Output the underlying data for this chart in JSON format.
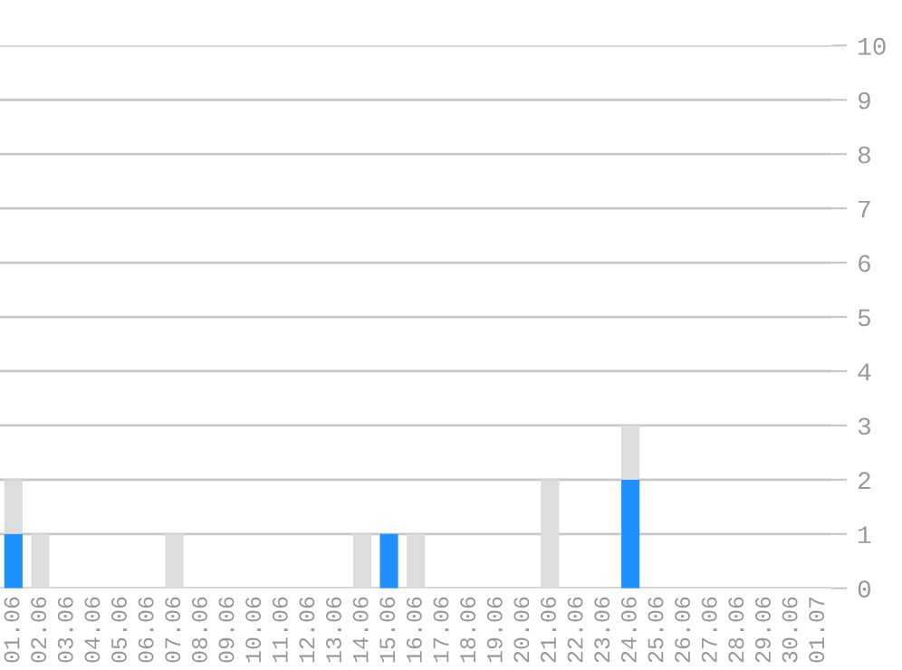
{
  "chart_data": {
    "type": "bar",
    "stacked": true,
    "categories": [
      "01.06",
      "02.06",
      "03.06",
      "04.06",
      "05.06",
      "06.06",
      "07.06",
      "08.06",
      "09.06",
      "10.06",
      "11.06",
      "12.06",
      "13.06",
      "14.06",
      "15.06",
      "16.06",
      "17.06",
      "18.06",
      "19.06",
      "20.06",
      "21.06",
      "22.06",
      "23.06",
      "24.06",
      "25.06",
      "26.06",
      "27.06",
      "28.06",
      "29.06",
      "30.06",
      "01.07"
    ],
    "series": [
      {
        "color": "#1e90ff",
        "values": [
          1,
          0,
          0,
          0,
          0,
          0,
          0,
          0,
          0,
          0,
          0,
          0,
          0,
          0,
          1,
          0,
          0,
          0,
          0,
          0,
          0,
          0,
          0,
          2,
          0,
          0,
          0,
          0,
          0,
          0,
          0
        ]
      },
      {
        "color": "#dddddd",
        "values": [
          1,
          1,
          0,
          0,
          0,
          0,
          1,
          0,
          0,
          0,
          0,
          0,
          0,
          1,
          0,
          1,
          0,
          0,
          0,
          0,
          2,
          0,
          0,
          1,
          0,
          0,
          0,
          0,
          0,
          0,
          0
        ]
      }
    ],
    "ylim": [
      0,
      10
    ],
    "yticks": [
      0,
      1,
      2,
      3,
      4,
      5,
      6,
      7,
      8,
      9,
      10
    ],
    "grid": "y",
    "legend": false
  }
}
